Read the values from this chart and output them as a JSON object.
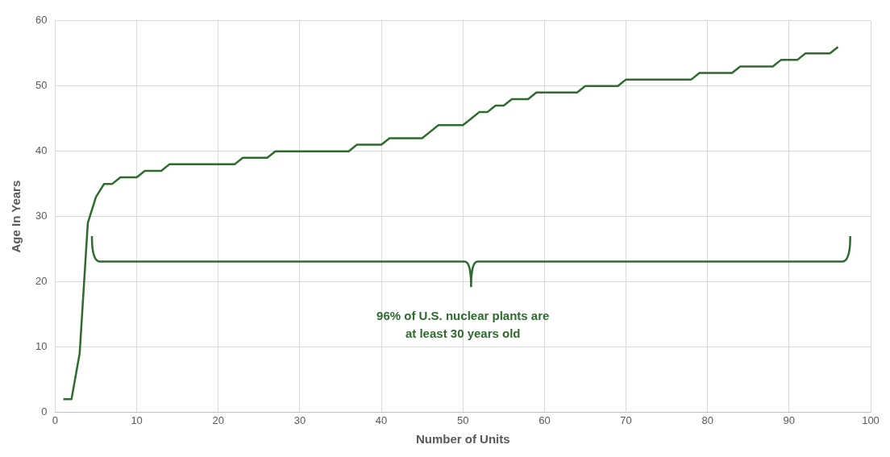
{
  "chart_data": {
    "type": "line",
    "xlabel": "Number of Units",
    "ylabel": "Age In Years",
    "x": [
      1,
      2,
      3,
      4,
      5,
      6,
      7,
      8,
      9,
      10,
      11,
      12,
      13,
      14,
      15,
      16,
      17,
      18,
      19,
      20,
      21,
      22,
      23,
      24,
      25,
      26,
      27,
      28,
      29,
      30,
      31,
      32,
      33,
      34,
      35,
      36,
      37,
      38,
      39,
      40,
      41,
      42,
      43,
      44,
      45,
      46,
      47,
      48,
      49,
      50,
      51,
      52,
      53,
      54,
      55,
      56,
      57,
      58,
      59,
      60,
      61,
      62,
      63,
      64,
      65,
      66,
      67,
      68,
      69,
      70,
      71,
      72,
      73,
      74,
      75,
      76,
      77,
      78,
      79,
      80,
      81,
      82,
      83,
      84,
      85,
      86,
      87,
      88,
      89,
      90,
      91,
      92,
      93,
      94,
      95,
      96
    ],
    "series": [
      {
        "color": "#2e6b2e",
        "values": [
          2,
          2,
          9,
          29,
          33,
          35,
          35,
          36,
          36,
          36,
          37,
          37,
          37,
          38,
          38,
          38,
          38,
          38,
          38,
          38,
          38,
          38,
          39,
          39,
          39,
          39,
          40,
          40,
          40,
          40,
          40,
          40,
          40,
          40,
          40,
          40,
          41,
          41,
          41,
          41,
          42,
          42,
          42,
          42,
          42,
          43,
          44,
          44,
          44,
          44,
          45,
          46,
          46,
          47,
          47,
          48,
          48,
          48,
          49,
          49,
          49,
          49,
          49,
          49,
          50,
          50,
          50,
          50,
          50,
          51,
          51,
          51,
          51,
          51,
          51,
          51,
          51,
          51,
          52,
          52,
          52,
          52,
          52,
          53,
          53,
          53,
          53,
          53,
          54,
          54,
          54,
          55,
          55,
          55,
          55,
          56
        ]
      }
    ],
    "xlim": [
      0,
      100
    ],
    "xticks": [
      0,
      10,
      20,
      30,
      40,
      50,
      60,
      70,
      80,
      90,
      100
    ],
    "ylim": [
      0,
      60
    ],
    "yticks": [
      0,
      10,
      20,
      30,
      40,
      50,
      60
    ],
    "grid": true,
    "marker": "none",
    "line_style": "solid",
    "annotations": [
      "96% of U.S. nuclear plants are\nat least 30 years old"
    ]
  }
}
